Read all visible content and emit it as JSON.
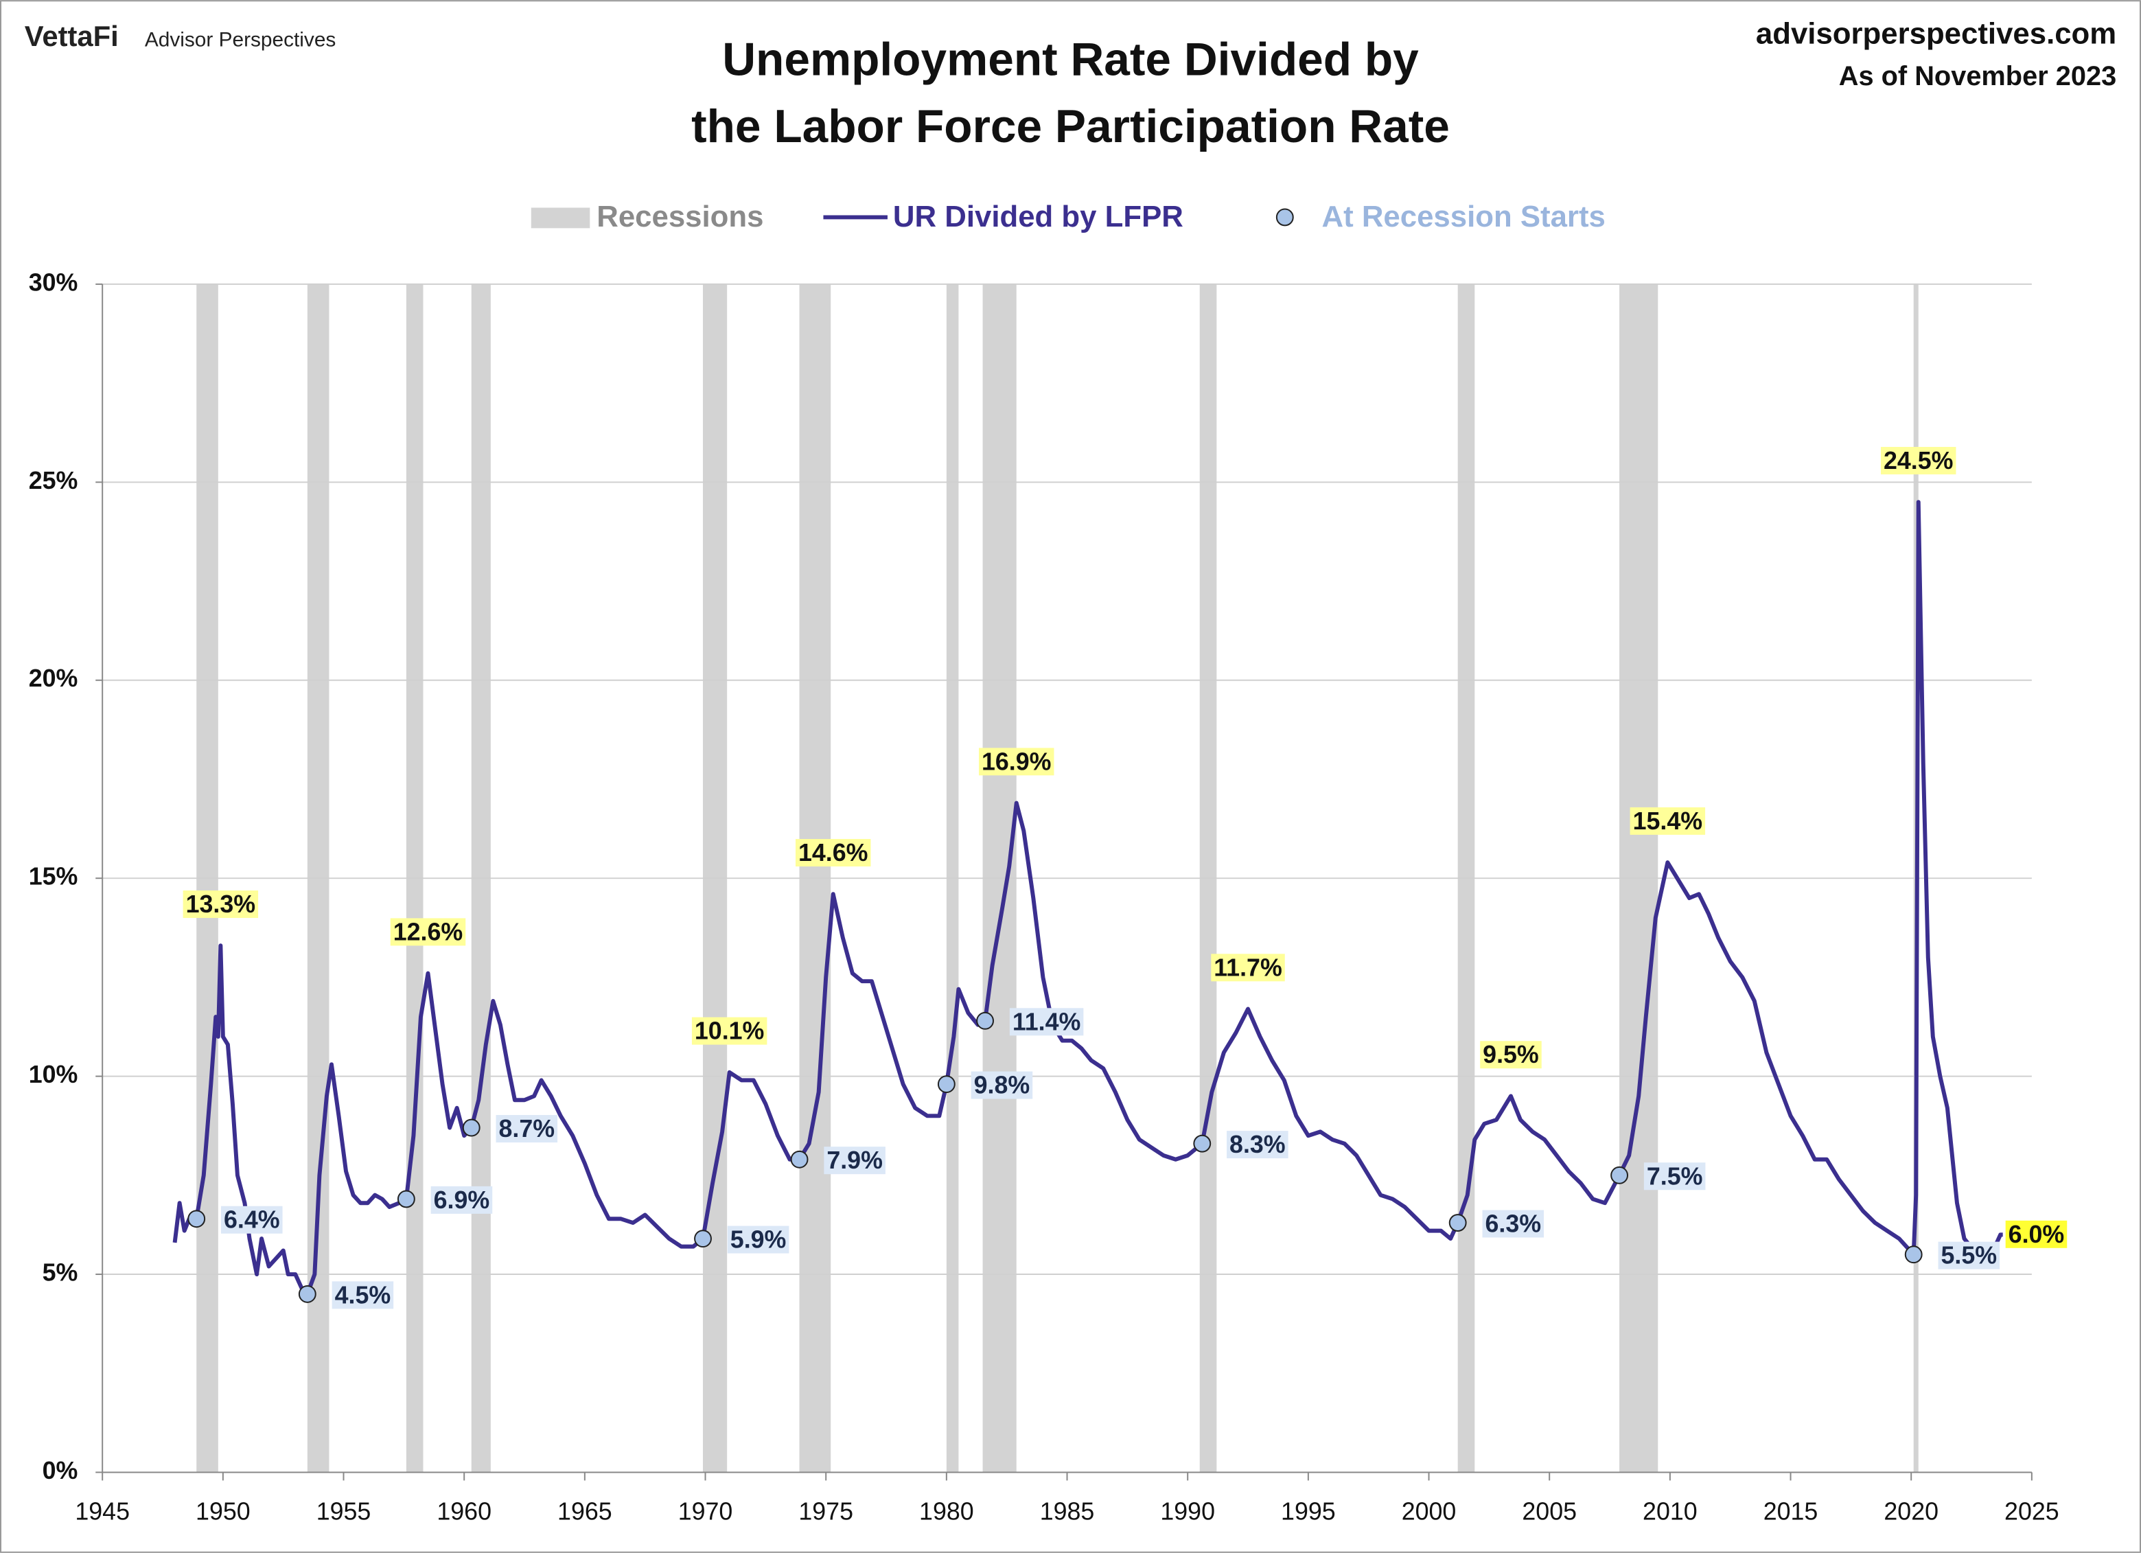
{
  "header": {
    "logo": "VettaFi",
    "brand": "Advisor Perspectives",
    "site": "advisorperspectives.com",
    "date": "As of November 2023"
  },
  "chart_data": {
    "type": "line",
    "title": [
      "Unemployment Rate Divided by",
      "the Labor Force Participation Rate"
    ],
    "xlim": [
      1945,
      2025
    ],
    "xticks": [
      1945,
      1950,
      1955,
      1960,
      1965,
      1970,
      1975,
      1980,
      1985,
      1990,
      1995,
      2000,
      2005,
      2010,
      2015,
      2020,
      2025
    ],
    "ylim": [
      0,
      30
    ],
    "yticks": [
      {
        "value": 0,
        "label": "0%"
      },
      {
        "value": 5,
        "label": "5%"
      },
      {
        "value": 10,
        "label": "10%"
      },
      {
        "value": 15,
        "label": "15%"
      },
      {
        "value": 20,
        "label": "20%"
      },
      {
        "value": 25,
        "label": "25%"
      },
      {
        "value": 30,
        "label": "30%"
      }
    ],
    "grid": true,
    "recessions": {
      "name": "Recessions",
      "color": "#d3d3d3",
      "spans": [
        [
          1948.9,
          1949.8
        ],
        [
          1953.5,
          1954.4
        ],
        [
          1957.6,
          1958.3
        ],
        [
          1960.3,
          1961.1
        ],
        [
          1969.9,
          1970.9
        ],
        [
          1973.9,
          1975.2
        ],
        [
          1980.0,
          1980.5
        ],
        [
          1981.5,
          1982.9
        ],
        [
          1990.5,
          1991.2
        ],
        [
          2001.2,
          2001.9
        ],
        [
          2007.9,
          2009.5
        ],
        [
          2020.1,
          2020.3
        ]
      ]
    },
    "series": [
      {
        "name": "UR Divided by LFPR",
        "color": "#3b2f8f",
        "x": [
          1948.0,
          1948.2,
          1948.4,
          1948.6,
          1948.9,
          1949.2,
          1949.5,
          1949.7,
          1949.8,
          1949.9,
          1950.0,
          1950.2,
          1950.4,
          1950.6,
          1950.9,
          1951.1,
          1951.4,
          1951.6,
          1951.9,
          1952.2,
          1952.5,
          1952.7,
          1953.0,
          1953.3,
          1953.5,
          1953.8,
          1954.0,
          1954.3,
          1954.5,
          1954.8,
          1955.1,
          1955.4,
          1955.7,
          1956.0,
          1956.3,
          1956.6,
          1956.9,
          1957.3,
          1957.6,
          1957.9,
          1958.2,
          1958.5,
          1958.8,
          1959.1,
          1959.4,
          1959.7,
          1960.0,
          1960.3,
          1960.6,
          1960.9,
          1961.2,
          1961.5,
          1961.8,
          1962.1,
          1962.5,
          1962.9,
          1963.2,
          1963.6,
          1964.0,
          1964.5,
          1965.0,
          1965.5,
          1966.0,
          1966.5,
          1967.0,
          1967.5,
          1968.0,
          1968.5,
          1969.0,
          1969.5,
          1969.9,
          1970.3,
          1970.7,
          1971.0,
          1971.5,
          1972.0,
          1972.5,
          1973.0,
          1973.5,
          1973.9,
          1974.3,
          1974.7,
          1975.0,
          1975.3,
          1975.7,
          1976.1,
          1976.5,
          1976.9,
          1977.3,
          1977.8,
          1978.2,
          1978.7,
          1979.2,
          1979.7,
          1980.0,
          1980.3,
          1980.5,
          1980.9,
          1981.3,
          1981.6,
          1981.9,
          1982.3,
          1982.6,
          1982.9,
          1983.2,
          1983.6,
          1984.0,
          1984.4,
          1984.8,
          1985.2,
          1985.6,
          1986.0,
          1986.5,
          1987.0,
          1987.5,
          1988.0,
          1988.5,
          1989.0,
          1989.5,
          1990.0,
          1990.6,
          1991.0,
          1991.5,
          1992.0,
          1992.5,
          1993.0,
          1993.5,
          1994.0,
          1994.5,
          1995.0,
          1995.5,
          1996.0,
          1996.5,
          1997.0,
          1997.5,
          1998.0,
          1998.5,
          1999.0,
          1999.5,
          2000.0,
          2000.5,
          2000.9,
          2001.2,
          2001.6,
          2001.9,
          2002.3,
          2002.8,
          2003.4,
          2003.8,
          2004.3,
          2004.8,
          2005.3,
          2005.8,
          2006.3,
          2006.8,
          2007.3,
          2007.9,
          2008.3,
          2008.7,
          2009.0,
          2009.4,
          2009.9,
          2010.3,
          2010.8,
          2011.2,
          2011.6,
          2012.0,
          2012.5,
          2013.0,
          2013.5,
          2014.0,
          2014.5,
          2015.0,
          2015.5,
          2016.0,
          2016.5,
          2017.0,
          2017.5,
          2018.0,
          2018.5,
          2019.0,
          2019.5,
          2020.1,
          2020.2,
          2020.3,
          2020.5,
          2020.7,
          2020.9,
          2021.2,
          2021.5,
          2021.9,
          2022.2,
          2022.6,
          2023.0,
          2023.4,
          2023.7,
          2023.8
        ],
        "values": [
          5.8,
          6.8,
          6.1,
          6.4,
          6.4,
          7.5,
          9.8,
          11.5,
          11.0,
          13.3,
          11.0,
          10.8,
          9.3,
          7.5,
          6.8,
          5.9,
          5.0,
          5.9,
          5.2,
          5.4,
          5.6,
          5.0,
          5.0,
          4.6,
          4.5,
          5.0,
          7.5,
          9.5,
          10.3,
          9.0,
          7.6,
          7.0,
          6.8,
          6.8,
          7.0,
          6.9,
          6.7,
          6.8,
          6.9,
          8.5,
          11.5,
          12.6,
          11.2,
          9.8,
          8.7,
          9.2,
          8.5,
          8.7,
          9.4,
          10.8,
          11.9,
          11.3,
          10.3,
          9.4,
          9.4,
          9.5,
          9.9,
          9.5,
          9.0,
          8.5,
          7.8,
          7.0,
          6.4,
          6.4,
          6.3,
          6.5,
          6.2,
          5.9,
          5.7,
          5.7,
          5.9,
          7.3,
          8.6,
          10.1,
          9.9,
          9.9,
          9.3,
          8.5,
          7.9,
          7.9,
          8.3,
          9.6,
          12.5,
          14.6,
          13.5,
          12.6,
          12.4,
          12.4,
          11.6,
          10.6,
          9.8,
          9.2,
          9.0,
          9.0,
          9.8,
          11.0,
          12.2,
          11.6,
          11.3,
          11.4,
          12.8,
          14.2,
          15.3,
          16.9,
          16.2,
          14.5,
          12.5,
          11.3,
          10.9,
          10.9,
          10.7,
          10.4,
          10.2,
          9.6,
          8.9,
          8.4,
          8.2,
          8.0,
          7.9,
          8.0,
          8.3,
          9.6,
          10.6,
          11.1,
          11.7,
          11.0,
          10.4,
          9.9,
          9.0,
          8.5,
          8.6,
          8.4,
          8.3,
          8.0,
          7.5,
          7.0,
          6.9,
          6.7,
          6.4,
          6.1,
          6.1,
          5.9,
          6.3,
          7.0,
          8.4,
          8.8,
          8.9,
          9.5,
          8.9,
          8.6,
          8.4,
          8.0,
          7.6,
          7.3,
          6.9,
          6.8,
          7.5,
          8.0,
          9.5,
          11.5,
          14.0,
          15.4,
          15.0,
          14.5,
          14.6,
          14.1,
          13.5,
          12.9,
          12.5,
          11.9,
          10.6,
          9.8,
          9.0,
          8.5,
          7.9,
          7.9,
          7.4,
          7.0,
          6.6,
          6.3,
          6.1,
          5.9,
          5.5,
          7.0,
          24.5,
          17.9,
          13.0,
          11.0,
          10.0,
          9.2,
          6.8,
          5.9,
          5.6,
          5.5,
          5.6,
          6.0,
          6.0
        ]
      },
      {
        "name": "At Recession Starts",
        "color": "#a9c4e8",
        "x": [
          1948.9,
          1953.5,
          1957.6,
          1960.3,
          1969.9,
          1973.9,
          1980.0,
          1981.6,
          1990.6,
          2001.2,
          2007.9,
          2020.1
        ],
        "values": [
          6.4,
          4.5,
          6.9,
          8.7,
          5.9,
          7.9,
          9.8,
          11.4,
          8.3,
          6.3,
          7.5,
          5.5
        ],
        "value_labels": [
          "6.4%",
          "4.5%",
          "6.9%",
          "8.7%",
          "5.9%",
          "7.9%",
          "9.8%",
          "11.4%",
          "8.3%",
          "6.3%",
          "7.5%",
          "5.5%"
        ]
      }
    ],
    "annotations": [
      {
        "x": 1949.9,
        "value": 13.3,
        "label": "13.3%"
      },
      {
        "x": 1958.5,
        "value": 12.6,
        "label": "12.6%"
      },
      {
        "x": 1971.0,
        "value": 10.1,
        "label": "10.1%"
      },
      {
        "x": 1975.3,
        "value": 14.6,
        "label": "14.6%"
      },
      {
        "x": 1982.9,
        "value": 16.9,
        "label": "16.9%"
      },
      {
        "x": 1992.5,
        "value": 11.7,
        "label": "11.7%"
      },
      {
        "x": 2003.4,
        "value": 9.5,
        "label": "9.5%"
      },
      {
        "x": 2009.9,
        "value": 15.4,
        "label": "15.4%"
      },
      {
        "x": 2020.3,
        "value": 24.5,
        "label": "24.5%"
      },
      {
        "x": 2023.8,
        "value": 6.0,
        "label": "6.0%",
        "position": "right"
      }
    ]
  }
}
